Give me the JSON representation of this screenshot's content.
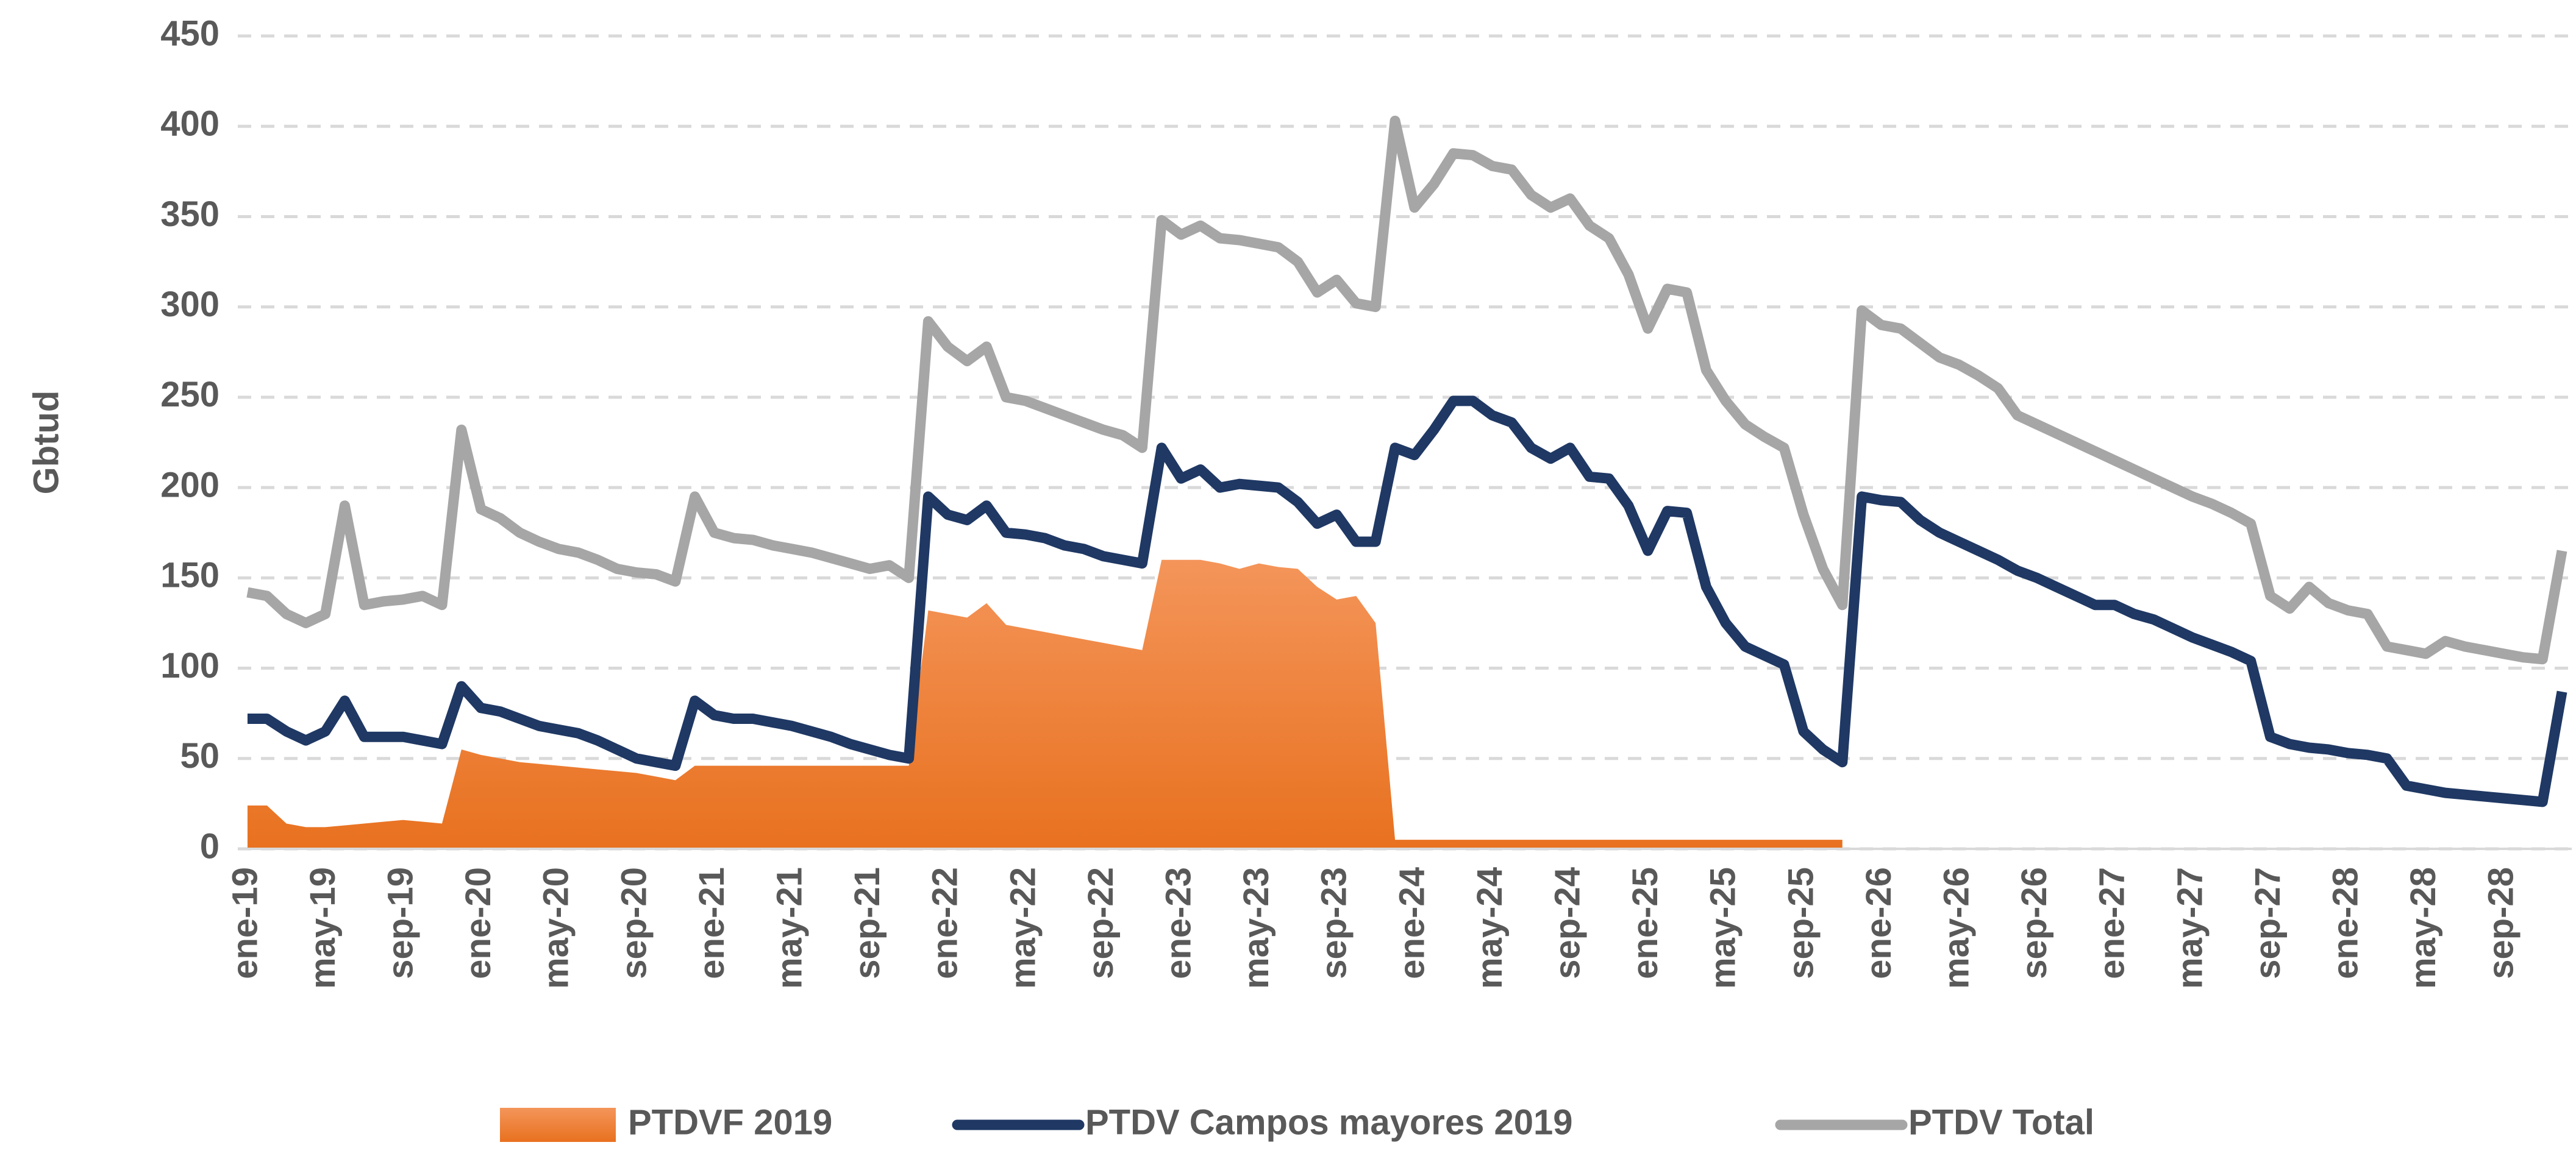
{
  "chart_data": {
    "type": "line",
    "y_label": "Gbtud",
    "categories": [
      "ene-19",
      null,
      null,
      null,
      "may-19",
      null,
      null,
      null,
      "sep-19",
      null,
      null,
      null,
      "ene-20",
      null,
      null,
      null,
      "may-20",
      null,
      null,
      null,
      "sep-20",
      null,
      null,
      null,
      "ene-21",
      null,
      null,
      null,
      "may-21",
      null,
      null,
      null,
      "sep-21",
      null,
      null,
      null,
      "ene-22",
      null,
      null,
      null,
      "may-22",
      null,
      null,
      null,
      "sep-22",
      null,
      null,
      null,
      "ene-23",
      null,
      null,
      null,
      "may-23",
      null,
      null,
      null,
      "sep-23",
      null,
      null,
      null,
      "ene-24",
      null,
      null,
      null,
      "may-24",
      null,
      null,
      null,
      "sep-24",
      null,
      null,
      null,
      "ene-25",
      null,
      null,
      null,
      "may-25",
      null,
      null,
      null,
      "sep-25",
      null,
      null,
      null,
      "ene-26",
      null,
      null,
      null,
      "may-26",
      null,
      null,
      null,
      "sep-26",
      null,
      null,
      null,
      "ene-27",
      null,
      null,
      null,
      "may-27",
      null,
      null,
      null,
      "sep-27",
      null,
      null,
      null,
      "ene-28",
      null,
      null,
      null,
      "may-28",
      null,
      null,
      null,
      "sep-28",
      null,
      null,
      null
    ],
    "series": [
      {
        "name": "PTDVF 2019",
        "kind": "area",
        "color": "#ed7d31",
        "values": [
          24,
          24,
          14,
          12,
          12,
          13,
          14,
          15,
          16,
          15,
          14,
          55,
          52,
          50,
          48,
          47,
          46,
          45,
          44,
          43,
          42,
          40,
          38,
          46,
          46,
          46,
          46,
          46,
          46,
          46,
          46,
          46,
          46,
          46,
          46,
          132,
          130,
          128,
          136,
          124,
          122,
          120,
          118,
          116,
          114,
          112,
          110,
          160,
          160,
          160,
          158,
          155,
          158,
          156,
          155,
          145,
          138,
          140,
          125,
          5,
          5,
          5,
          5,
          5,
          5,
          5,
          5,
          5,
          5,
          5,
          5,
          5,
          5,
          5,
          5,
          5,
          5,
          5,
          5,
          5,
          5,
          5,
          5,
          null,
          null,
          null,
          null,
          null,
          null,
          null,
          null,
          null,
          null,
          null,
          null,
          null,
          null,
          null,
          null,
          null,
          null,
          null,
          null,
          null,
          null,
          null,
          null,
          null,
          null,
          null,
          null,
          null,
          null,
          null,
          null,
          null,
          null,
          null,
          null,
          null
        ]
      },
      {
        "name": "PTDV Campos mayores 2019",
        "kind": "line",
        "color": "#1f3864",
        "values": [
          72,
          72,
          65,
          60,
          65,
          82,
          62,
          62,
          62,
          60,
          58,
          90,
          78,
          76,
          72,
          68,
          66,
          64,
          60,
          55,
          50,
          48,
          46,
          82,
          74,
          72,
          72,
          70,
          68,
          65,
          62,
          58,
          55,
          52,
          50,
          195,
          185,
          182,
          190,
          175,
          174,
          172,
          168,
          166,
          162,
          160,
          158,
          222,
          205,
          210,
          200,
          202,
          201,
          200,
          192,
          180,
          185,
          170,
          170,
          222,
          218,
          232,
          248,
          248,
          240,
          236,
          222,
          216,
          222,
          206,
          205,
          190,
          165,
          187,
          186,
          145,
          125,
          112,
          107,
          102,
          65,
          55,
          48,
          195,
          193,
          192,
          182,
          175,
          170,
          165,
          160,
          154,
          150,
          145,
          140,
          135,
          135,
          130,
          127,
          122,
          117,
          113,
          109,
          104,
          62,
          58,
          56,
          55,
          53,
          52,
          50,
          35,
          33,
          31,
          30,
          29,
          28,
          27,
          26,
          87
        ]
      },
      {
        "name": "PTDV Total",
        "kind": "line",
        "color": "#a6a6a6",
        "values": [
          142,
          140,
          130,
          125,
          130,
          190,
          135,
          137,
          138,
          140,
          135,
          232,
          188,
          183,
          175,
          170,
          166,
          164,
          160,
          155,
          153,
          152,
          148,
          195,
          175,
          172,
          171,
          168,
          166,
          164,
          161,
          158,
          155,
          157,
          150,
          292,
          278,
          270,
          278,
          250,
          248,
          244,
          240,
          236,
          232,
          229,
          222,
          348,
          340,
          345,
          338,
          337,
          335,
          333,
          325,
          308,
          315,
          302,
          300,
          403,
          355,
          368,
          385,
          384,
          378,
          376,
          362,
          355,
          360,
          345,
          338,
          318,
          288,
          310,
          308,
          265,
          248,
          235,
          228,
          222,
          185,
          155,
          135,
          298,
          290,
          288,
          280,
          272,
          268,
          262,
          255,
          240,
          235,
          230,
          225,
          220,
          215,
          210,
          205,
          200,
          195,
          191,
          186,
          180,
          140,
          133,
          145,
          136,
          132,
          130,
          112,
          110,
          108,
          115,
          112,
          110,
          108,
          106,
          105,
          165
        ]
      }
    ],
    "ylim": [
      0,
      450
    ],
    "yticks": [
      0,
      50,
      100,
      150,
      200,
      250,
      300,
      350,
      400,
      450
    ],
    "grid": true,
    "legend": "bottom"
  }
}
